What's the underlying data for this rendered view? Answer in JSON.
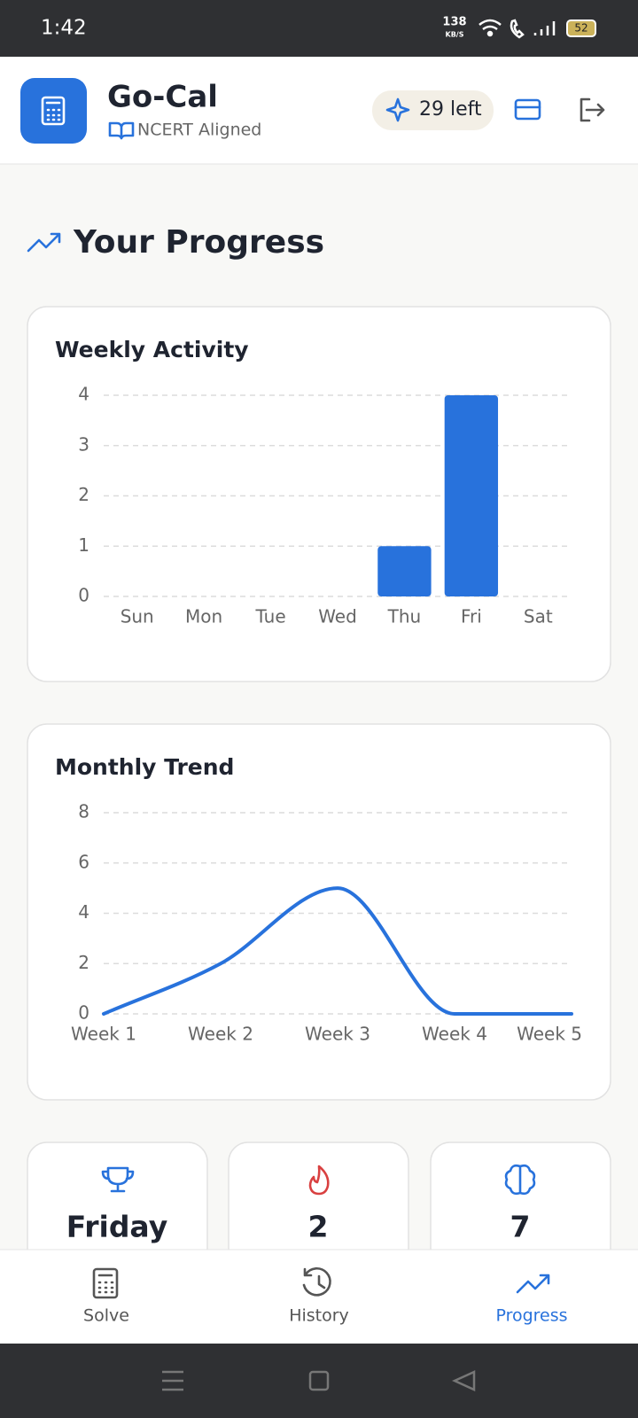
{
  "status_bar": {
    "time": "1:42",
    "speed": "138",
    "speed_unit": "KB/S",
    "battery": "52"
  },
  "header": {
    "title": "Go-Cal",
    "subtitle": "NCERT Aligned",
    "credits": "29 left"
  },
  "page_title": "Your Progress",
  "chart_data": [
    {
      "type": "bar",
      "title": "Weekly Activity",
      "categories": [
        "Sun",
        "Mon",
        "Tue",
        "Wed",
        "Thu",
        "Fri",
        "Sat"
      ],
      "values": [
        0,
        0,
        0,
        0,
        1,
        4,
        0
      ],
      "color": "#2872dc",
      "ylim": [
        0,
        4
      ],
      "yticks": [
        0,
        1,
        2,
        3,
        4
      ],
      "grid": true
    },
    {
      "type": "line",
      "title": "Monthly Trend",
      "categories": [
        "Week 1",
        "Week 2",
        "Week 3",
        "Week 4",
        "Week 5"
      ],
      "values": [
        0,
        2,
        5,
        0,
        0
      ],
      "color": "#2872dc",
      "ylim": [
        0,
        8
      ],
      "yticks": [
        0,
        2,
        4,
        6,
        8
      ],
      "grid": true
    }
  ],
  "stats": [
    "Friday",
    "2",
    "7"
  ],
  "nav": [
    {
      "label": "Solve"
    },
    {
      "label": "History"
    },
    {
      "label": "Progress"
    }
  ]
}
